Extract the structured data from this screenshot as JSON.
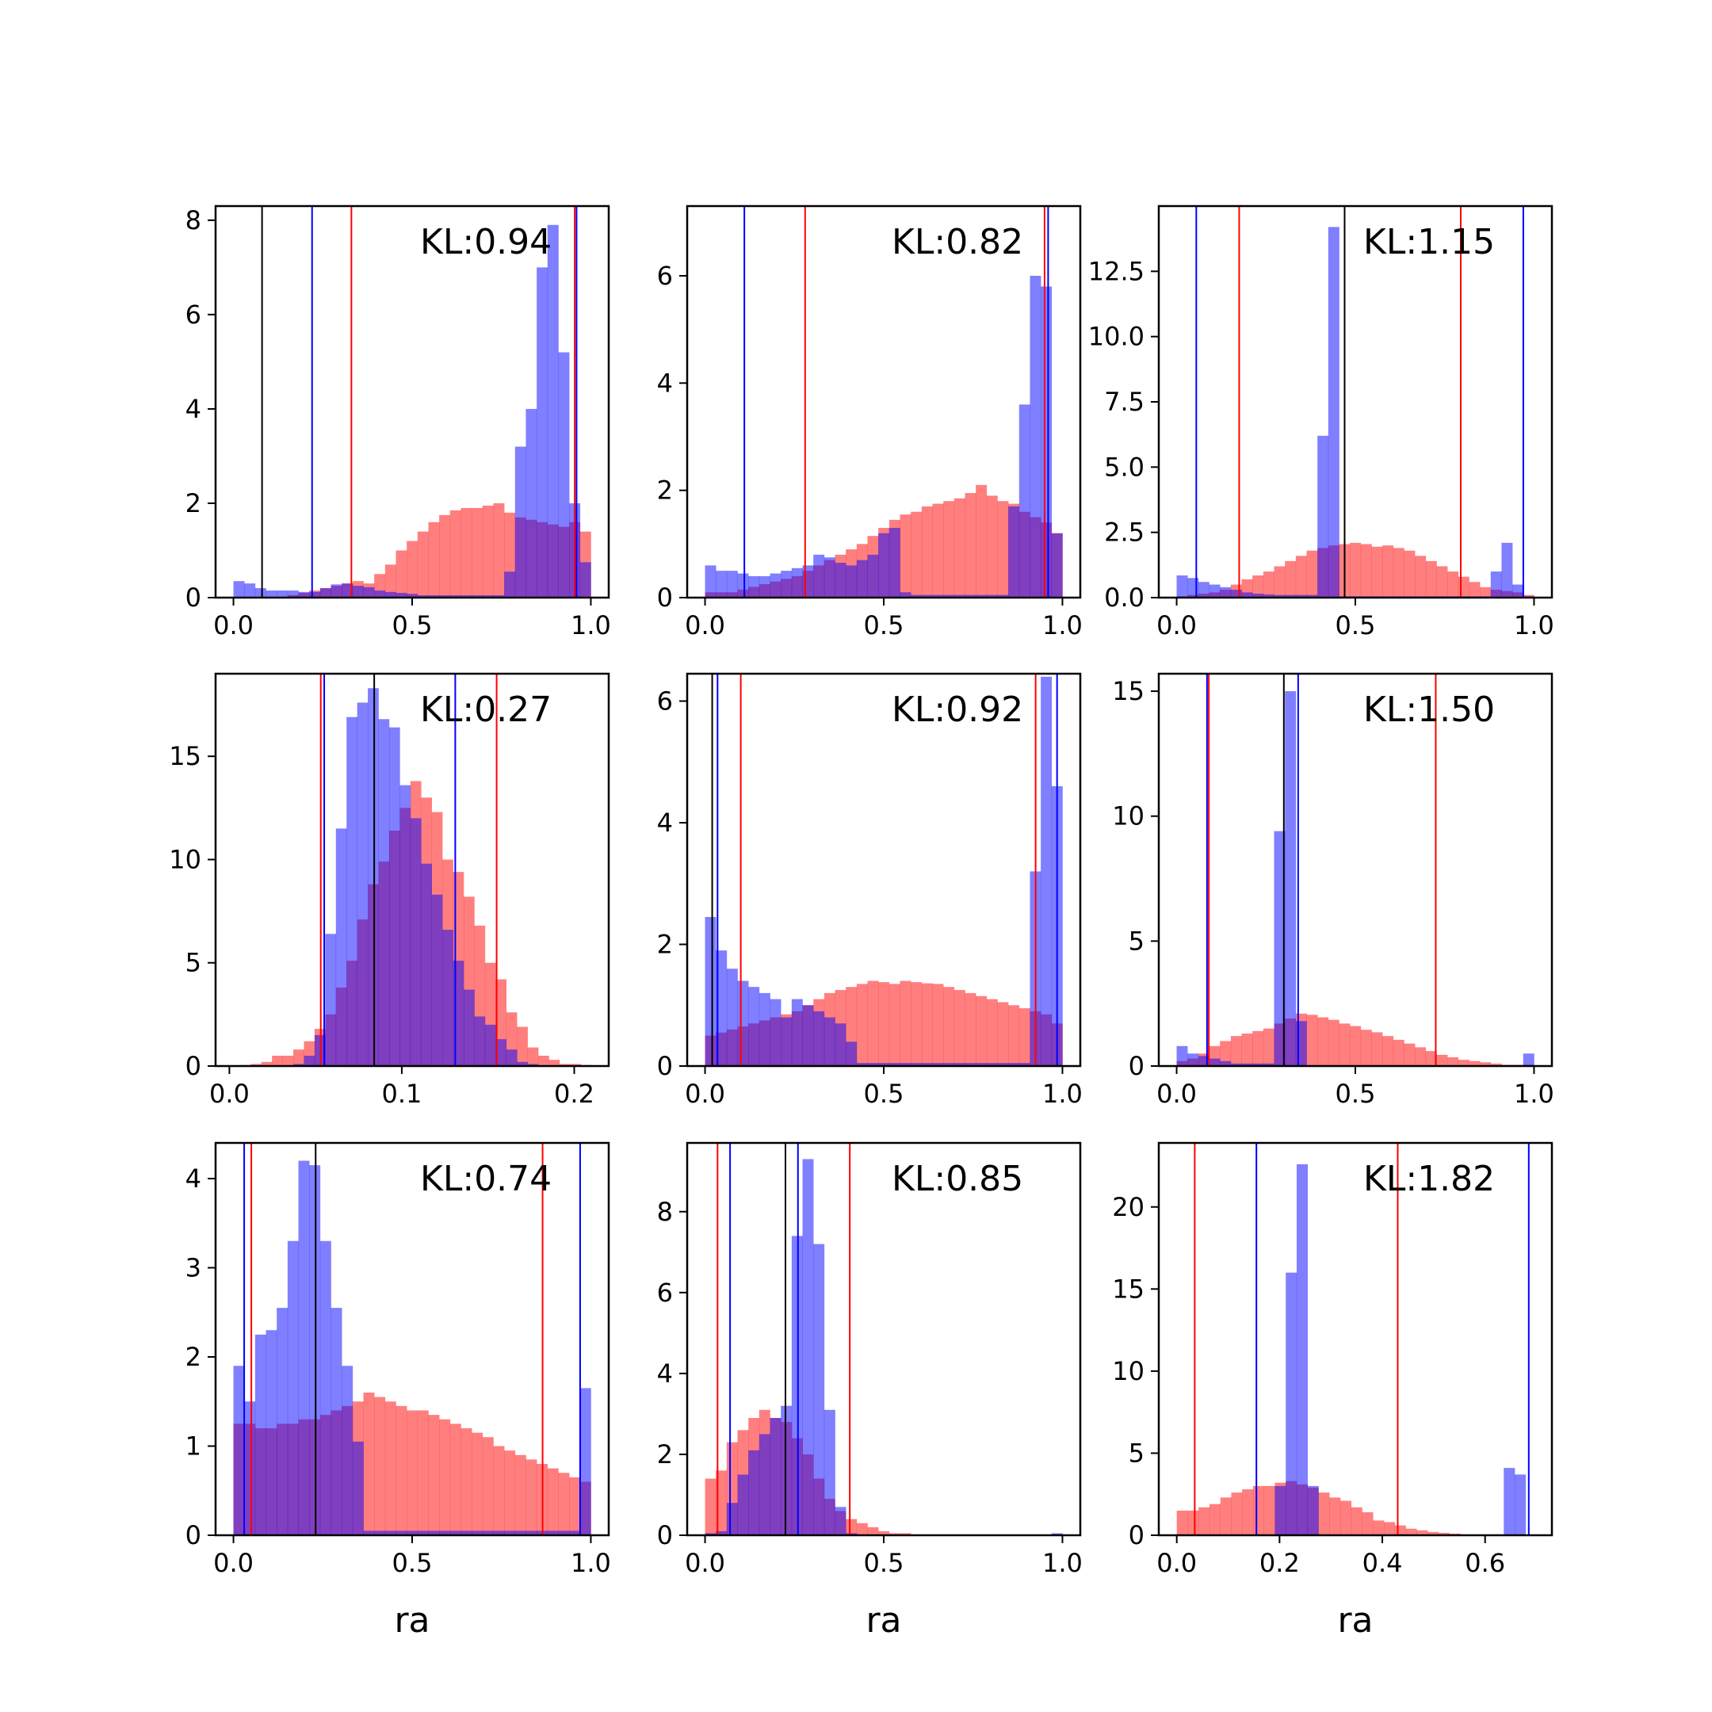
{
  "colors": {
    "red_hist": "#ff0000",
    "blue_hist": "#0000ff",
    "overlap": "#7f3fbf",
    "median_line": "#000000"
  },
  "chart_data": [
    {
      "type": "histogram",
      "kl_text": "KL:0.94",
      "xlabel": "",
      "xlim": [
        -0.05,
        1.05
      ],
      "ylim": [
        0,
        8.3
      ],
      "xticks": [
        {
          "v": 0,
          "label": "0.0"
        },
        {
          "v": 0.5,
          "label": "0.5"
        },
        {
          "v": 1,
          "label": "1.0"
        }
      ],
      "yticks": [
        {
          "v": 0,
          "label": "0"
        },
        {
          "v": 2,
          "label": "2"
        },
        {
          "v": 4,
          "label": "4"
        },
        {
          "v": 6,
          "label": "6"
        },
        {
          "v": 8,
          "label": "8"
        }
      ],
      "bin_range": [
        0,
        1
      ],
      "red_values": [
        0,
        0,
        0,
        0,
        0,
        0.05,
        0.1,
        0.15,
        0.2,
        0.25,
        0.3,
        0.35,
        0.3,
        0.5,
        0.7,
        1.0,
        1.2,
        1.4,
        1.6,
        1.75,
        1.85,
        1.9,
        1.9,
        1.95,
        2.0,
        1.8,
        1.7,
        1.65,
        1.6,
        1.55,
        1.5,
        1.6,
        1.4
      ],
      "blue_values": [
        0.35,
        0.3,
        0.2,
        0.15,
        0.15,
        0.15,
        0.12,
        0.12,
        0.2,
        0.28,
        0.3,
        0.25,
        0.22,
        0.15,
        0.12,
        0.1,
        0.08,
        0.05,
        0.05,
        0.05,
        0.05,
        0.05,
        0.05,
        0.05,
        0.05,
        0.55,
        3.2,
        4.0,
        7.0,
        7.9,
        5.2,
        2.0,
        0.75
      ],
      "lines": [
        {
          "x": 0.08,
          "series": "black"
        },
        {
          "x": 0.22,
          "series": "blue"
        },
        {
          "x": 0.33,
          "series": "red"
        },
        {
          "x": 0.955,
          "series": "red"
        },
        {
          "x": 0.96,
          "series": "blue"
        }
      ]
    },
    {
      "type": "histogram",
      "kl_text": "KL:0.82",
      "xlabel": "",
      "xlim": [
        -0.05,
        1.05
      ],
      "ylim": [
        0,
        7.3
      ],
      "xticks": [
        {
          "v": 0,
          "label": "0.0"
        },
        {
          "v": 0.5,
          "label": "0.5"
        },
        {
          "v": 1,
          "label": "1.0"
        }
      ],
      "yticks": [
        {
          "v": 0,
          "label": "0"
        },
        {
          "v": 2,
          "label": "2"
        },
        {
          "v": 4,
          "label": "4"
        },
        {
          "v": 6,
          "label": "6"
        }
      ],
      "bin_range": [
        0,
        1
      ],
      "red_values": [
        0.1,
        0.1,
        0.1,
        0.15,
        0.2,
        0.25,
        0.3,
        0.35,
        0.4,
        0.5,
        0.6,
        0.7,
        0.8,
        0.9,
        1.0,
        1.15,
        1.3,
        1.45,
        1.55,
        1.6,
        1.7,
        1.75,
        1.8,
        1.85,
        1.95,
        2.1,
        1.9,
        1.8,
        1.75,
        1.6,
        1.5,
        1.4,
        1.2
      ],
      "blue_values": [
        0.6,
        0.5,
        0.5,
        0.45,
        0.4,
        0.4,
        0.45,
        0.5,
        0.55,
        0.6,
        0.8,
        0.75,
        0.65,
        0.6,
        0.7,
        0.8,
        1.2,
        1.3,
        0.1,
        0.05,
        0.05,
        0.05,
        0.05,
        0.05,
        0.05,
        0.05,
        0.05,
        0.05,
        1.7,
        3.6,
        6.0,
        5.8,
        1.2
      ],
      "lines": [
        {
          "x": 0.11,
          "series": "blue"
        },
        {
          "x": 0.28,
          "series": "red"
        },
        {
          "x": 0.95,
          "series": "red"
        },
        {
          "x": 0.96,
          "series": "blue"
        }
      ]
    },
    {
      "type": "histogram",
      "kl_text": "KL:1.15",
      "xlabel": "",
      "xlim": [
        -0.05,
        1.05
      ],
      "ylim": [
        0,
        15.0
      ],
      "xticks": [
        {
          "v": 0,
          "label": "0.0"
        },
        {
          "v": 0.5,
          "label": "0.5"
        },
        {
          "v": 1,
          "label": "1.0"
        }
      ],
      "yticks": [
        {
          "v": 0,
          "label": "0.0"
        },
        {
          "v": 2.5,
          "label": "2.5"
        },
        {
          "v": 5.0,
          "label": "5.0"
        },
        {
          "v": 7.5,
          "label": "7.5"
        },
        {
          "v": 10.0,
          "label": "10.0"
        },
        {
          "v": 12.5,
          "label": "12.5"
        }
      ],
      "bin_range": [
        0,
        1
      ],
      "red_values": [
        0.05,
        0.1,
        0.15,
        0.2,
        0.3,
        0.5,
        0.7,
        0.85,
        1.0,
        1.2,
        1.4,
        1.6,
        1.8,
        1.9,
        2.0,
        2.05,
        2.1,
        2.05,
        1.95,
        2.0,
        1.9,
        1.8,
        1.6,
        1.4,
        1.2,
        1.0,
        0.8,
        0.6,
        0.4,
        0.3,
        0.25,
        0.2,
        0.1
      ],
      "blue_values": [
        0.85,
        0.75,
        0.6,
        0.5,
        0.4,
        0.3,
        0.2,
        0.15,
        0.12,
        0.1,
        0.1,
        0.1,
        0.1,
        6.2,
        14.2,
        0.05,
        0.05,
        0.05,
        0.05,
        0.05,
        0.05,
        0.05,
        0.05,
        0.05,
        0.05,
        0.05,
        0.05,
        0.05,
        0.05,
        1.0,
        2.1,
        0.5,
        0.05
      ],
      "lines": [
        {
          "x": 0.055,
          "series": "blue"
        },
        {
          "x": 0.175,
          "series": "red"
        },
        {
          "x": 0.47,
          "series": "black"
        },
        {
          "x": 0.795,
          "series": "red"
        },
        {
          "x": 0.97,
          "series": "blue"
        }
      ]
    },
    {
      "type": "histogram",
      "kl_text": "KL:0.27",
      "xlabel": "",
      "xlim": [
        -0.008,
        0.22
      ],
      "ylim": [
        0,
        19.0
      ],
      "xticks": [
        {
          "v": 0,
          "label": "0.0"
        },
        {
          "v": 0.1,
          "label": "0.1"
        },
        {
          "v": 0.2,
          "label": "0.2"
        }
      ],
      "yticks": [
        {
          "v": 0,
          "label": "0"
        },
        {
          "v": 5,
          "label": "5"
        },
        {
          "v": 10,
          "label": "10"
        },
        {
          "v": 15,
          "label": "15"
        }
      ],
      "bin_range": [
        0,
        0.21
      ],
      "red_values": [
        0,
        0.05,
        0.1,
        0.2,
        0.5,
        0.5,
        0.8,
        1.2,
        1.8,
        2.5,
        3.8,
        5.1,
        7.1,
        8.8,
        9.9,
        11.4,
        12.5,
        13.8,
        13.0,
        12.3,
        10.0,
        9.4,
        8.2,
        6.8,
        5.0,
        4.2,
        2.6,
        1.9,
        0.9,
        0.5,
        0.3,
        0.1,
        0.1,
        0.05
      ],
      "blue_values": [
        0,
        0,
        0,
        0,
        0,
        0,
        0.1,
        0.5,
        1.5,
        6.4,
        11.5,
        16.9,
        17.6,
        18.3,
        16.8,
        16.4,
        13.6,
        12.0,
        9.8,
        8.3,
        6.6,
        5.1,
        3.7,
        2.4,
        2.0,
        1.3,
        0.8,
        0.2,
        0.1,
        0,
        0,
        0,
        0,
        0
      ],
      "lines": [
        {
          "x": 0.053,
          "series": "red"
        },
        {
          "x": 0.055,
          "series": "blue"
        },
        {
          "x": 0.084,
          "series": "black"
        },
        {
          "x": 0.131,
          "series": "blue"
        },
        {
          "x": 0.155,
          "series": "red"
        }
      ]
    },
    {
      "type": "histogram",
      "kl_text": "KL:0.92",
      "xlabel": "",
      "xlim": [
        -0.05,
        1.05
      ],
      "ylim": [
        0,
        6.45
      ],
      "xticks": [
        {
          "v": 0,
          "label": "0.0"
        },
        {
          "v": 0.5,
          "label": "0.5"
        },
        {
          "v": 1,
          "label": "1.0"
        }
      ],
      "yticks": [
        {
          "v": 0,
          "label": "0"
        },
        {
          "v": 2,
          "label": "2"
        },
        {
          "v": 4,
          "label": "4"
        },
        {
          "v": 6,
          "label": "6"
        }
      ],
      "bin_range": [
        0,
        1
      ],
      "red_values": [
        0.5,
        0.55,
        0.6,
        0.65,
        0.7,
        0.75,
        0.8,
        0.85,
        0.9,
        1.0,
        1.1,
        1.2,
        1.25,
        1.3,
        1.35,
        1.4,
        1.38,
        1.35,
        1.4,
        1.38,
        1.36,
        1.35,
        1.3,
        1.25,
        1.2,
        1.15,
        1.1,
        1.05,
        1.0,
        0.95,
        0.9,
        0.85,
        0.7
      ],
      "blue_values": [
        2.45,
        1.9,
        1.6,
        1.4,
        1.3,
        1.2,
        1.1,
        0.8,
        1.1,
        1.0,
        0.9,
        0.8,
        0.7,
        0.4,
        0.05,
        0.05,
        0.05,
        0.05,
        0.05,
        0.05,
        0.05,
        0.05,
        0.05,
        0.05,
        0.05,
        0.05,
        0.05,
        0.05,
        0.05,
        0.05,
        3.2,
        6.4,
        4.6
      ],
      "lines": [
        {
          "x": 0.02,
          "series": "black"
        },
        {
          "x": 0.035,
          "series": "blue"
        },
        {
          "x": 0.1,
          "series": "red"
        },
        {
          "x": 0.925,
          "series": "red"
        },
        {
          "x": 0.985,
          "series": "blue"
        }
      ]
    },
    {
      "type": "histogram",
      "kl_text": "KL:1.50",
      "xlabel": "",
      "xlim": [
        -0.05,
        1.05
      ],
      "ylim": [
        0,
        15.7
      ],
      "xticks": [
        {
          "v": 0,
          "label": "0.0"
        },
        {
          "v": 0.5,
          "label": "0.5"
        },
        {
          "v": 1,
          "label": "1.0"
        }
      ],
      "yticks": [
        {
          "v": 0,
          "label": "0"
        },
        {
          "v": 5,
          "label": "5"
        },
        {
          "v": 10,
          "label": "10"
        },
        {
          "v": 15,
          "label": "15"
        }
      ],
      "bin_range": [
        0,
        1
      ],
      "red_values": [
        0.2,
        0.3,
        0.5,
        0.8,
        1.0,
        1.2,
        1.3,
        1.4,
        1.5,
        1.7,
        1.9,
        2.1,
        2.05,
        1.95,
        1.85,
        1.7,
        1.6,
        1.45,
        1.35,
        1.2,
        1.05,
        0.9,
        0.75,
        0.6,
        0.45,
        0.35,
        0.25,
        0.2,
        0.15,
        0.1,
        0.05,
        0.05,
        0.05
      ],
      "blue_values": [
        0.8,
        0.5,
        0.4,
        0.3,
        0.2,
        0.1,
        0.1,
        0.1,
        0.1,
        9.4,
        15.0,
        1.8,
        0,
        0,
        0,
        0,
        0,
        0,
        0,
        0,
        0,
        0,
        0,
        0,
        0,
        0,
        0,
        0,
        0,
        0,
        0,
        0,
        0.5
      ],
      "lines": [
        {
          "x": 0.085,
          "series": "blue"
        },
        {
          "x": 0.09,
          "series": "red"
        },
        {
          "x": 0.3,
          "series": "black"
        },
        {
          "x": 0.34,
          "series": "blue"
        },
        {
          "x": 0.725,
          "series": "red"
        }
      ]
    },
    {
      "type": "histogram",
      "kl_text": "KL:0.74",
      "xlabel": "ra",
      "xlim": [
        -0.05,
        1.05
      ],
      "ylim": [
        0,
        4.4
      ],
      "xticks": [
        {
          "v": 0,
          "label": "0.0"
        },
        {
          "v": 0.5,
          "label": "0.5"
        },
        {
          "v": 1,
          "label": "1.0"
        }
      ],
      "yticks": [
        {
          "v": 0,
          "label": "0"
        },
        {
          "v": 1,
          "label": "1"
        },
        {
          "v": 2,
          "label": "2"
        },
        {
          "v": 3,
          "label": "3"
        },
        {
          "v": 4,
          "label": "4"
        }
      ],
      "bin_range": [
        0,
        1
      ],
      "red_values": [
        1.25,
        1.25,
        1.2,
        1.2,
        1.25,
        1.25,
        1.3,
        1.3,
        1.35,
        1.4,
        1.45,
        1.5,
        1.6,
        1.55,
        1.5,
        1.45,
        1.4,
        1.4,
        1.35,
        1.3,
        1.25,
        1.2,
        1.15,
        1.1,
        1.0,
        0.95,
        0.9,
        0.85,
        0.8,
        0.75,
        0.7,
        0.65,
        0.6
      ],
      "blue_values": [
        1.9,
        1.5,
        2.25,
        2.3,
        2.55,
        3.3,
        4.2,
        4.15,
        3.3,
        2.55,
        1.9,
        1.05,
        0.05,
        0.05,
        0.05,
        0.05,
        0.05,
        0.05,
        0.05,
        0.05,
        0.05,
        0.05,
        0.05,
        0.05,
        0.05,
        0.05,
        0.05,
        0.05,
        0.05,
        0.05,
        0.05,
        0.05,
        1.65
      ],
      "lines": [
        {
          "x": 0.03,
          "series": "blue"
        },
        {
          "x": 0.05,
          "series": "red"
        },
        {
          "x": 0.23,
          "series": "black"
        },
        {
          "x": 0.865,
          "series": "red"
        },
        {
          "x": 0.97,
          "series": "blue"
        }
      ]
    },
    {
      "type": "histogram",
      "kl_text": "KL:0.85",
      "xlabel": "ra",
      "xlim": [
        -0.05,
        1.05
      ],
      "ylim": [
        0,
        9.7
      ],
      "xticks": [
        {
          "v": 0,
          "label": "0.0"
        },
        {
          "v": 0.5,
          "label": "0.5"
        },
        {
          "v": 1,
          "label": "1.0"
        }
      ],
      "yticks": [
        {
          "v": 0,
          "label": "0"
        },
        {
          "v": 2,
          "label": "2"
        },
        {
          "v": 4,
          "label": "4"
        },
        {
          "v": 6,
          "label": "6"
        },
        {
          "v": 8,
          "label": "8"
        }
      ],
      "bin_range": [
        0,
        1
      ],
      "red_values": [
        1.4,
        1.6,
        2.3,
        2.6,
        2.9,
        3.1,
        2.9,
        2.8,
        2.4,
        2.0,
        1.4,
        0.9,
        0.6,
        0.4,
        0.3,
        0.2,
        0.1,
        0.05,
        0.05,
        0,
        0,
        0,
        0,
        0,
        0,
        0,
        0,
        0,
        0,
        0,
        0,
        0,
        0.02
      ],
      "blue_values": [
        0.05,
        0.1,
        0.8,
        1.5,
        2.1,
        2.5,
        2.9,
        3.2,
        7.4,
        9.3,
        7.2,
        3.1,
        0.7,
        0.05,
        0,
        0,
        0,
        0,
        0,
        0,
        0,
        0,
        0,
        0,
        0,
        0,
        0,
        0,
        0,
        0,
        0,
        0,
        0.05
      ],
      "lines": [
        {
          "x": 0.035,
          "series": "red"
        },
        {
          "x": 0.07,
          "series": "blue"
        },
        {
          "x": 0.225,
          "series": "black"
        },
        {
          "x": 0.26,
          "series": "blue"
        },
        {
          "x": 0.405,
          "series": "red"
        }
      ]
    },
    {
      "type": "histogram",
      "kl_text": "KL:1.82",
      "xlabel": "ra",
      "xlim": [
        -0.035,
        0.73
      ],
      "ylim": [
        0,
        23.9
      ],
      "xticks": [
        {
          "v": 0,
          "label": "0.0"
        },
        {
          "v": 0.2,
          "label": "0.2"
        },
        {
          "v": 0.4,
          "label": "0.4"
        },
        {
          "v": 0.6,
          "label": "0.6"
        }
      ],
      "yticks": [
        {
          "v": 0,
          "label": "0"
        },
        {
          "v": 5,
          "label": "5"
        },
        {
          "v": 10,
          "label": "10"
        },
        {
          "v": 15,
          "label": "15"
        },
        {
          "v": 20,
          "label": "20"
        }
      ],
      "bin_range": [
        0,
        0.7
      ],
      "red_values": [
        1.5,
        1.5,
        1.7,
        1.9,
        2.3,
        2.6,
        2.8,
        3.0,
        3.0,
        3.2,
        3.3,
        3.1,
        2.9,
        2.6,
        2.3,
        2.1,
        1.7,
        1.4,
        0.9,
        0.8,
        0.6,
        0.4,
        0.3,
        0.2,
        0.15,
        0.1,
        0.05,
        0,
        0,
        0,
        0,
        0,
        0
      ],
      "blue_values": [
        0,
        0,
        0,
        0,
        0,
        0,
        0,
        0,
        0,
        3.0,
        16.0,
        22.6,
        3.0,
        0,
        0,
        0,
        0,
        0,
        0,
        0,
        0,
        0,
        0,
        0,
        0,
        0,
        0,
        0,
        0,
        0,
        4.1,
        3.7,
        0
      ],
      "lines": [
        {
          "x": 0.035,
          "series": "red"
        },
        {
          "x": 0.155,
          "series": "blue"
        },
        {
          "x": 0.43,
          "series": "red"
        },
        {
          "x": 0.685,
          "series": "blue"
        }
      ]
    }
  ]
}
